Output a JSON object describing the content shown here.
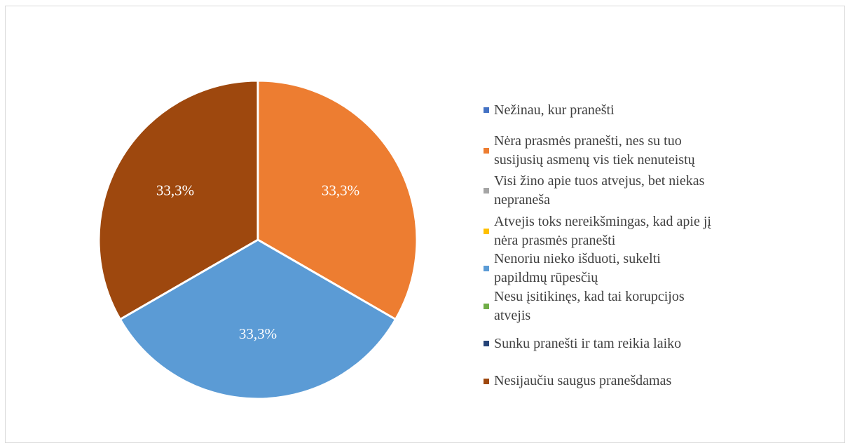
{
  "chart_data": {
    "type": "pie",
    "categories": [
      "Nežinau, kur pranešti",
      "Nėra prasmės pranešti, nes su tuo susijusių asmenų vis tiek nenuteistų",
      "Visi žino apie tuos atvejus, bet niekas nepraneša",
      "Atvejis toks nereikšmingas, kad apie jį nėra prasmės pranešti",
      "Nenoriu nieko išduoti, sukelti papildmų rūpesčių",
      "Nesu įsitikinęs, kad tai korupcijos atvejis",
      "Sunku pranešti ir tam reikia laiko",
      "Nesijaučiu saugus pranešdamas"
    ],
    "values": [
      0,
      33.3,
      0,
      0,
      33.3,
      0,
      0,
      33.3
    ],
    "value_labels": [
      null,
      "33,3%",
      null,
      null,
      "33,3%",
      null,
      null,
      "33,3%"
    ],
    "colors": [
      "#4472c4",
      "#ed7d31",
      "#a5a5a5",
      "#ffc000",
      "#5b9bd5",
      "#70ad47",
      "#264478",
      "#9e480e"
    ],
    "legend": "right"
  }
}
